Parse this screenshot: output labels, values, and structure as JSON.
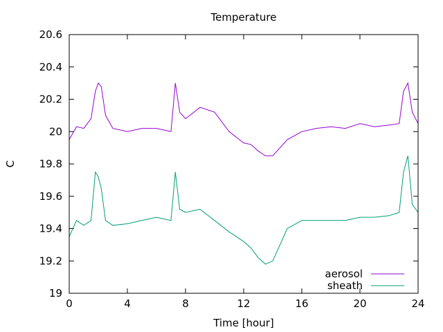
{
  "chart_data": {
    "type": "line",
    "title": "Temperature",
    "xlabel": "Time [hour]",
    "ylabel": "C",
    "xlim": [
      0,
      24
    ],
    "ylim": [
      19,
      20.6
    ],
    "xticks": [
      0,
      4,
      8,
      12,
      16,
      20,
      24
    ],
    "xtick_labels": [
      "0",
      "4",
      "8",
      "12",
      "16",
      "20",
      "24"
    ],
    "yticks": [
      19,
      19.2,
      19.4,
      19.6,
      19.8,
      20,
      20.2,
      20.4,
      20.6
    ],
    "ytick_labels": [
      "19",
      "19.2",
      "19.4",
      "19.6",
      "19.8",
      "20",
      "20.2",
      "20.4",
      "20.6"
    ],
    "grid": false,
    "legend_position": "bottom-right",
    "series": [
      {
        "name": "aerosol",
        "color": "#9400d3",
        "x": [
          0,
          0.5,
          1.0,
          1.5,
          1.8,
          2.0,
          2.2,
          2.5,
          3.0,
          4.0,
          5.0,
          6.0,
          7.0,
          7.3,
          7.6,
          8.0,
          9.0,
          10.0,
          11.0,
          12.0,
          12.5,
          13.0,
          13.5,
          14.0,
          15.0,
          16.0,
          17.0,
          18.0,
          19.0,
          20.0,
          21.0,
          22.0,
          22.7,
          23.0,
          23.3,
          23.6,
          24.0
        ],
        "y": [
          19.95,
          20.03,
          20.02,
          20.08,
          20.25,
          20.3,
          20.28,
          20.1,
          20.02,
          20.0,
          20.02,
          20.02,
          20.0,
          20.3,
          20.12,
          20.08,
          20.15,
          20.12,
          20.0,
          19.93,
          19.92,
          19.88,
          19.85,
          19.85,
          19.95,
          20.0,
          20.02,
          20.03,
          20.02,
          20.05,
          20.03,
          20.04,
          20.05,
          20.25,
          20.3,
          20.12,
          20.05
        ]
      },
      {
        "name": "sheath",
        "color": "#009e73",
        "x": [
          0,
          0.5,
          1.0,
          1.5,
          1.8,
          2.0,
          2.2,
          2.5,
          3.0,
          4.0,
          5.0,
          6.0,
          7.0,
          7.3,
          7.6,
          8.0,
          9.0,
          10.0,
          11.0,
          12.0,
          12.5,
          13.0,
          13.5,
          14.0,
          15.0,
          16.0,
          17.0,
          18.0,
          19.0,
          20.0,
          21.0,
          22.0,
          22.7,
          23.0,
          23.3,
          23.6,
          24.0
        ],
        "y": [
          19.35,
          19.45,
          19.42,
          19.45,
          19.75,
          19.72,
          19.65,
          19.45,
          19.42,
          19.43,
          19.45,
          19.47,
          19.45,
          19.75,
          19.52,
          19.5,
          19.52,
          19.45,
          19.38,
          19.32,
          19.28,
          19.22,
          19.18,
          19.2,
          19.4,
          19.45,
          19.45,
          19.45,
          19.45,
          19.47,
          19.47,
          19.48,
          19.5,
          19.75,
          19.85,
          19.55,
          19.5
        ]
      }
    ]
  }
}
